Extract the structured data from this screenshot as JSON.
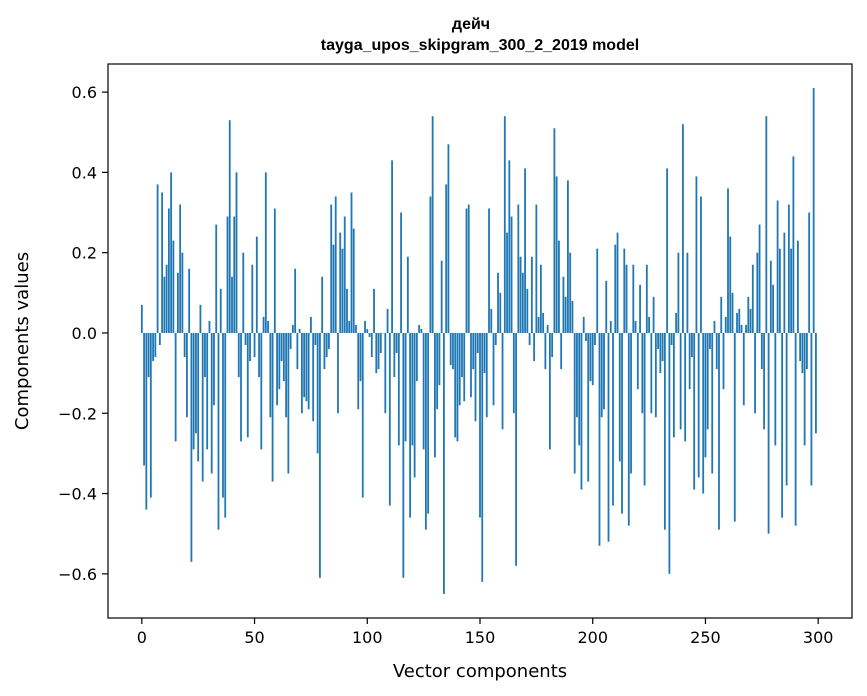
{
  "chart_data": {
    "type": "bar",
    "title": "дейч",
    "subtitle": "tayga_upos_skipgram_300_2_2019 model",
    "xlabel": "Vector components",
    "ylabel": "Components values",
    "xlim": [
      -15,
      315
    ],
    "ylim": [
      -0.71,
      0.67
    ],
    "xticks": [
      0,
      50,
      100,
      150,
      200,
      250,
      300
    ],
    "yticks": [
      -0.6,
      -0.4,
      -0.2,
      0.0,
      0.2,
      0.4,
      0.6
    ],
    "ytick_labels": [
      "−0.6",
      "−0.4",
      "−0.2",
      "0.0",
      "0.2",
      "0.4",
      "0.6"
    ],
    "bar_color": "#1f77b4",
    "grid": false,
    "legend": "none",
    "values": [
      0.07,
      -0.33,
      -0.44,
      -0.11,
      -0.41,
      -0.07,
      -0.06,
      0.37,
      -0.03,
      0.35,
      0.14,
      0.17,
      0.31,
      0.4,
      0.23,
      -0.27,
      0.15,
      0.32,
      0.2,
      -0.06,
      -0.21,
      0.16,
      -0.57,
      -0.29,
      -0.25,
      -0.32,
      0.07,
      -0.37,
      -0.11,
      -0.29,
      0.03,
      -0.35,
      -0.18,
      0.27,
      -0.49,
      0.11,
      -0.41,
      -0.46,
      0.29,
      0.53,
      0.14,
      0.29,
      0.4,
      -0.11,
      -0.27,
      0.2,
      -0.03,
      -0.26,
      -0.07,
      0.17,
      -0.06,
      0.24,
      -0.11,
      -0.29,
      0.04,
      0.4,
      0.03,
      -0.21,
      -0.37,
      0.31,
      -0.18,
      -0.14,
      -0.07,
      -0.12,
      -0.21,
      -0.35,
      -0.04,
      0.02,
      0.16,
      -0.09,
      0.01,
      -0.2,
      -0.16,
      -0.17,
      -0.19,
      0.04,
      -0.22,
      -0.03,
      -0.3,
      -0.61,
      0.14,
      -0.09,
      -0.06,
      -0.04,
      0.32,
      0.22,
      0.34,
      -0.2,
      0.25,
      0.21,
      0.29,
      0.11,
      0.03,
      0.35,
      0.26,
      0.02,
      -0.19,
      -0.12,
      -0.41,
      0.03,
      0.01,
      -0.01,
      -0.06,
      0.11,
      -0.1,
      -0.09,
      -0.05,
      0.0,
      -0.2,
      0.06,
      -0.43,
      0.43,
      -0.11,
      -0.05,
      -0.28,
      0.3,
      -0.61,
      -0.27,
      0.19,
      -0.46,
      -0.28,
      -0.36,
      -0.12,
      0.02,
      0.01,
      -0.29,
      -0.49,
      -0.45,
      0.34,
      0.54,
      -0.31,
      -0.19,
      -0.13,
      0.18,
      -0.65,
      0.37,
      0.47,
      -0.08,
      -0.09,
      -0.26,
      -0.27,
      -0.18,
      -0.11,
      -0.17,
      0.31,
      0.32,
      -0.16,
      -0.09,
      -0.22,
      -0.05,
      -0.46,
      -0.62,
      -0.1,
      -0.21,
      0.31,
      0.06,
      -0.18,
      -0.03,
      0.15,
      0.1,
      -0.24,
      0.54,
      0.25,
      0.43,
      0.29,
      -0.2,
      -0.58,
      0.32,
      0.19,
      0.15,
      0.41,
      0.11,
      -0.03,
      0.19,
      -0.07,
      0.32,
      0.04,
      0.17,
      0.05,
      -0.09,
      0.02,
      -0.29,
      -0.06,
      0.51,
      0.39,
      0.23,
      -0.09,
      0.14,
      0.09,
      0.38,
      0.2,
      0.08,
      -0.35,
      -0.21,
      -0.28,
      -0.39,
      0.04,
      -0.02,
      -0.37,
      -0.12,
      -0.13,
      -0.03,
      0.21,
      -0.53,
      -0.21,
      -0.19,
      0.13,
      -0.52,
      0.03,
      -0.43,
      0.22,
      0.25,
      -0.32,
      -0.45,
      0.21,
      0.17,
      -0.48,
      -0.35,
      0.17,
      0.03,
      -0.14,
      0.12,
      -0.2,
      -0.38,
      0.17,
      0.04,
      -0.2,
      0.09,
      -0.21,
      -0.04,
      -0.1,
      -0.07,
      -0.49,
      0.41,
      -0.6,
      -0.03,
      -0.26,
      0.05,
      0.2,
      -0.24,
      0.52,
      -0.27,
      0.2,
      -0.14,
      -0.06,
      -0.39,
      0.39,
      -0.36,
      0.34,
      -0.4,
      -0.31,
      -0.24,
      -0.04,
      -0.35,
      0.03,
      -0.09,
      -0.49,
      0.09,
      -0.14,
      0.04,
      0.36,
      0.24,
      0.1,
      -0.47,
      0.05,
      0.06,
      0.02,
      -0.18,
      0.02,
      0.09,
      0.06,
      0.17,
      -0.2,
      0.2,
      0.27,
      -0.09,
      -0.24,
      0.54,
      -0.5,
      0.18,
      0.12,
      -0.28,
      0.33,
      0.21,
      -0.46,
      0.25,
      -0.38,
      0.32,
      0.21,
      0.44,
      -0.48,
      0.23,
      -0.07,
      -0.1,
      -0.28,
      -0.09,
      0.3,
      -0.38,
      0.61,
      -0.25
    ]
  }
}
